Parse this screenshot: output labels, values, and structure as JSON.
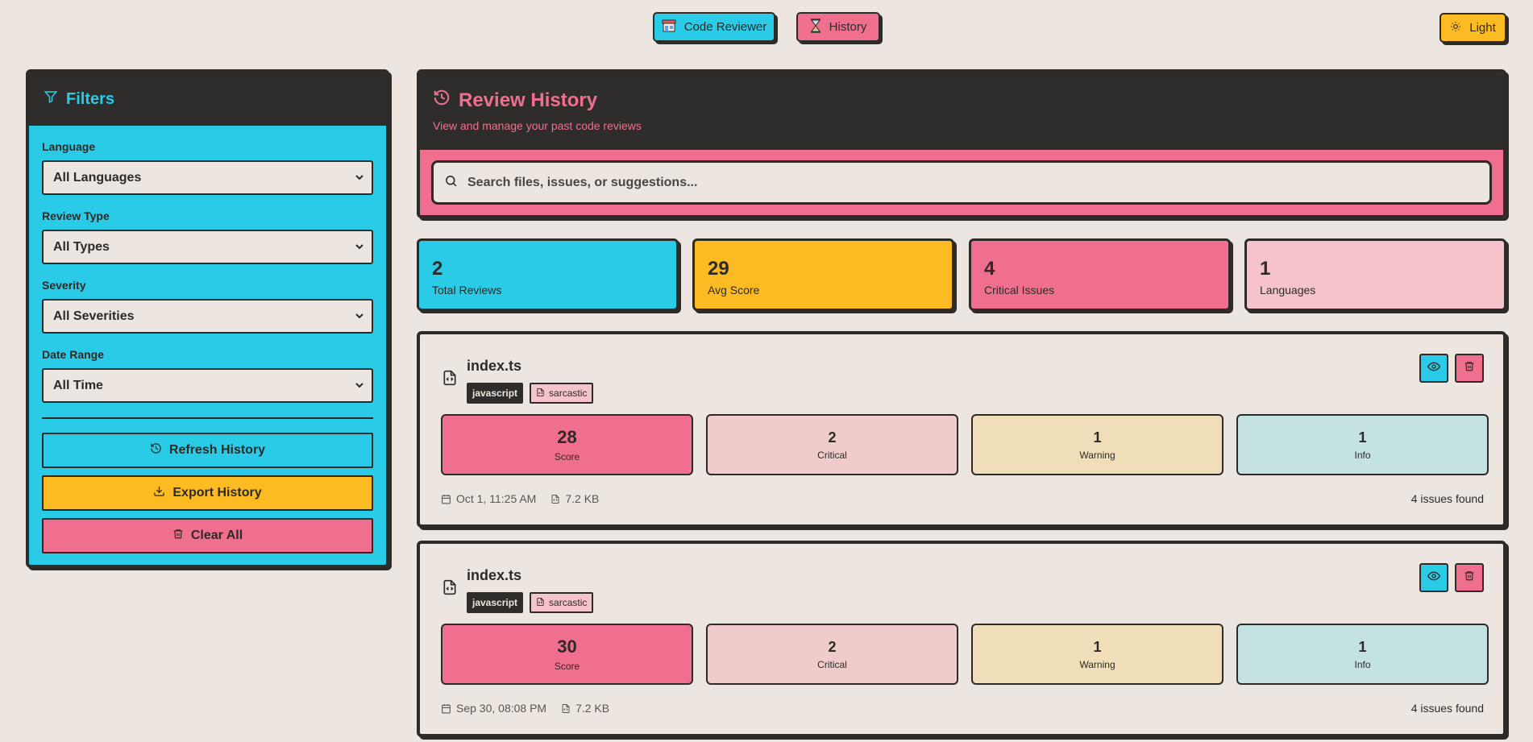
{
  "nav": {
    "code_reviewer_label": "Code Reviewer",
    "history_label": "History",
    "theme_label": "Light"
  },
  "filters": {
    "title": "Filters",
    "language_label": "Language",
    "language_value": "All Languages",
    "review_type_label": "Review Type",
    "review_type_value": "All Types",
    "severity_label": "Severity",
    "severity_value": "All Severities",
    "date_range_label": "Date Range",
    "date_range_value": "All Time",
    "refresh_label": "Refresh History",
    "export_label": "Export History",
    "clear_label": "Clear All"
  },
  "header": {
    "title": "Review History",
    "subtitle": "View and manage your past code reviews",
    "search_placeholder": "Search files, issues, or suggestions..."
  },
  "stats": [
    {
      "value": "2",
      "label": "Total Reviews"
    },
    {
      "value": "29",
      "label": "Avg Score"
    },
    {
      "value": "4",
      "label": "Critical Issues"
    },
    {
      "value": "1",
      "label": "Languages"
    }
  ],
  "reviews": [
    {
      "filename": "index.ts",
      "language": "javascript",
      "mode": "sarcastic",
      "score": "28",
      "score_label": "Score",
      "critical": "2",
      "critical_label": "Critical",
      "warning": "1",
      "warning_label": "Warning",
      "info": "1",
      "info_label": "Info",
      "date": "Oct 1, 11:25 AM",
      "size": "7.2 KB",
      "issues": "4 issues found"
    },
    {
      "filename": "index.ts",
      "language": "javascript",
      "mode": "sarcastic",
      "score": "30",
      "score_label": "Score",
      "critical": "2",
      "critical_label": "Critical",
      "warning": "1",
      "warning_label": "Warning",
      "info": "1",
      "info_label": "Info",
      "date": "Sep 30, 08:08 PM",
      "size": "7.2 KB",
      "issues": "4 issues found"
    }
  ],
  "colors": {
    "background": "#ede6e0",
    "cyan": "#29cbe6",
    "pink": "#f06f8f",
    "yellow": "#fcbb22",
    "light_pink": "#f7c3cb",
    "dark": "#2f2d2b"
  }
}
